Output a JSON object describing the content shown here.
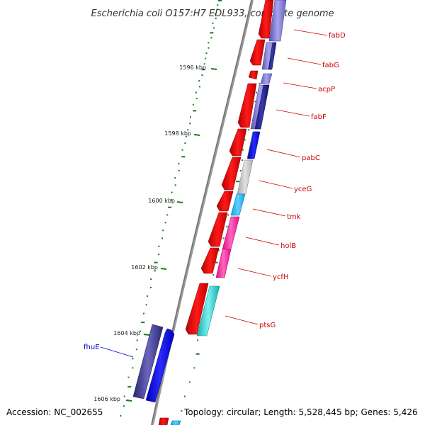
{
  "title": "Escherichia coli O157:H7 EDL933, complete genome",
  "accession": "Accession: NC_002655",
  "topology": "Topology: circular; Length: 5,528,445 bp; Genes: 5,426",
  "ticks": [
    "1596 kbp",
    "1598 kbp",
    "1600 kbp",
    "1602 kbp",
    "1604 kbp",
    "1606 kbp"
  ],
  "genes": [
    {
      "name": "fabD",
      "color": "#cc0000"
    },
    {
      "name": "fabG",
      "color": "#cc0000"
    },
    {
      "name": "acpP",
      "color": "#cc0000"
    },
    {
      "name": "fabF",
      "color": "#cc0000"
    },
    {
      "name": "pabC",
      "color": "#cc0000"
    },
    {
      "name": "yceG",
      "color": "#cc0000"
    },
    {
      "name": "tmk",
      "color": "#cc0000"
    },
    {
      "name": "holB",
      "color": "#cc0000"
    },
    {
      "name": "ycfH",
      "color": "#cc0000"
    },
    {
      "name": "ptsG",
      "color": "#cc0000"
    },
    {
      "name": "fhuE",
      "color": "#0000cc"
    }
  ],
  "colors": {
    "backbone": "#8c8c8c",
    "cds": "#ff0000",
    "tick_mark": "#1a7a1a",
    "gc_dots": "#1a7a1a"
  }
}
